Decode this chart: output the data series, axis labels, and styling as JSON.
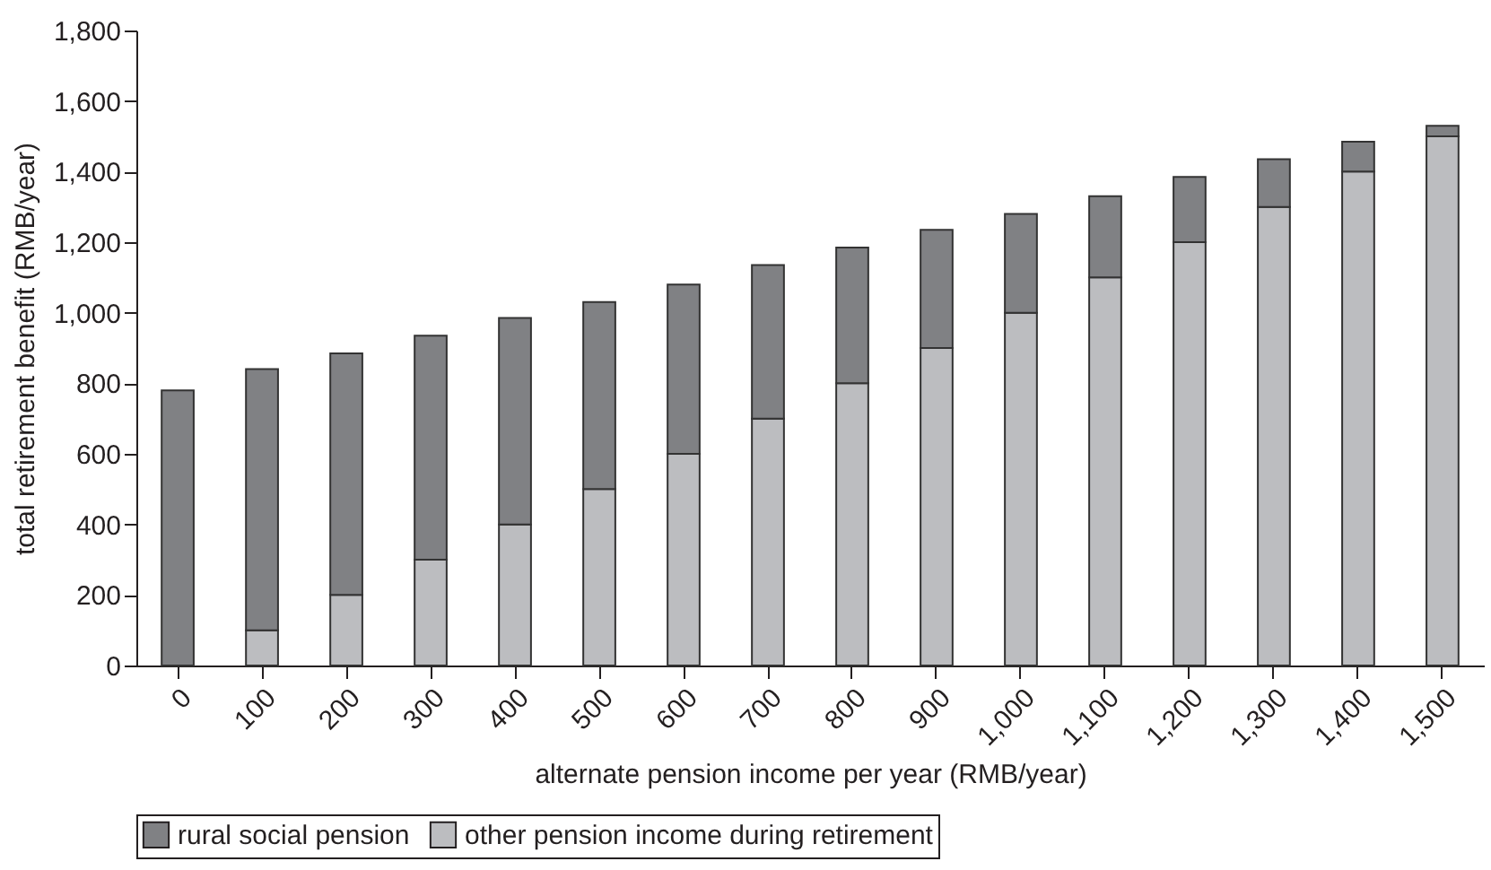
{
  "chart_data": {
    "type": "bar",
    "stacked": true,
    "xlabel": "alternate pension income per year (RMB/year)",
    "ylabel": "total retirement benefit (RMB/year)",
    "categories": [
      "0",
      "100",
      "200",
      "300",
      "400",
      "500",
      "600",
      "700",
      "800",
      "900",
      "1,000",
      "1,100",
      "1,200",
      "1,300",
      "1,400",
      "1,500"
    ],
    "series": [
      {
        "name": "other pension income during retirement",
        "color": "#bcbdc0",
        "values": [
          0,
          100,
          200,
          300,
          400,
          500,
          600,
          700,
          800,
          900,
          1000,
          1100,
          1200,
          1300,
          1400,
          1500
        ]
      },
      {
        "name": "rural social pension",
        "color": "#808184",
        "values": [
          780,
          740,
          685,
          635,
          585,
          530,
          480,
          435,
          385,
          335,
          280,
          230,
          185,
          135,
          85,
          30
        ]
      }
    ],
    "ylim": [
      0,
      1800
    ],
    "yticks": [
      0,
      200,
      400,
      600,
      800,
      {
        "value": 1000,
        "label": "1,000"
      },
      {
        "value": 1200,
        "label": "1,200"
      },
      {
        "value": 1400,
        "label": "1,400"
      },
      {
        "value": 1600,
        "label": "1,600"
      },
      {
        "value": 1800,
        "label": "1,800"
      }
    ],
    "grid": false,
    "legend": "bottom"
  }
}
